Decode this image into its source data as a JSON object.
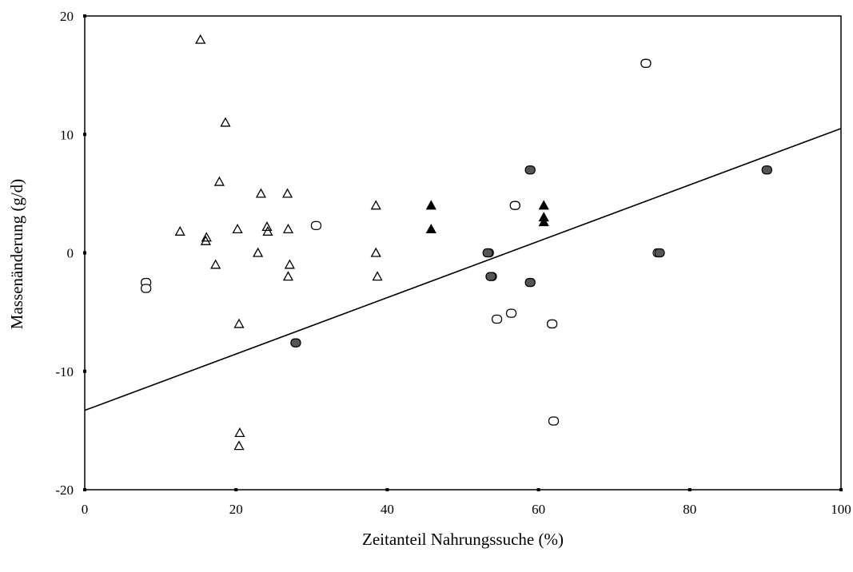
{
  "chart_data": {
    "type": "scatter",
    "title": "",
    "xlabel": "Zeitanteil Nahrungssuche (%)",
    "ylabel": "Massenänderung (g/d)",
    "xlim": [
      0,
      100
    ],
    "ylim": [
      -20,
      20
    ],
    "x_ticks": [
      "0",
      "20",
      "40",
      "60",
      "80",
      "100"
    ],
    "y_ticks": [
      "-20",
      "-10",
      "0",
      "10",
      "20"
    ],
    "grid": false,
    "legend": "none",
    "series": [
      {
        "marker": "open-triangle",
        "points": [
          [
            15.3,
            18
          ],
          [
            18.6,
            11
          ],
          [
            17.8,
            6
          ],
          [
            23.3,
            5
          ],
          [
            26.8,
            5
          ],
          [
            38.5,
            4
          ],
          [
            12.6,
            1.8
          ],
          [
            16.1,
            1.3
          ],
          [
            16.0,
            1.0
          ],
          [
            20.2,
            2.0
          ],
          [
            24.1,
            2.2
          ],
          [
            24.2,
            1.8
          ],
          [
            26.9,
            2.0
          ],
          [
            22.9,
            0
          ],
          [
            38.5,
            0
          ],
          [
            17.3,
            -1
          ],
          [
            27.1,
            -1
          ],
          [
            26.9,
            -2
          ],
          [
            38.7,
            -2
          ],
          [
            20.4,
            -6
          ],
          [
            20.5,
            -15.2
          ],
          [
            20.4,
            -16.3
          ]
        ]
      },
      {
        "marker": "filled-triangle",
        "points": [
          [
            45.8,
            4
          ],
          [
            45.8,
            2
          ],
          [
            60.7,
            4
          ],
          [
            60.7,
            3
          ],
          [
            60.7,
            2.6
          ]
        ]
      },
      {
        "marker": "open-circle",
        "points": [
          [
            8.1,
            -2.5
          ],
          [
            8.1,
            -3.0
          ],
          [
            30.6,
            2.3
          ],
          [
            53.4,
            0
          ],
          [
            53.8,
            -2.0
          ],
          [
            54.5,
            -5.6
          ],
          [
            56.4,
            -5.1
          ],
          [
            56.9,
            4
          ],
          [
            61.8,
            -6
          ],
          [
            62.0,
            -14.2
          ],
          [
            74.2,
            16
          ],
          [
            75.8,
            0
          ]
        ]
      },
      {
        "marker": "filled-circle",
        "points": [
          [
            27.9,
            -7.6
          ],
          [
            58.9,
            7
          ],
          [
            58.9,
            -2.5
          ],
          [
            90.2,
            7
          ],
          [
            53.3,
            0
          ],
          [
            53.7,
            -2.0
          ],
          [
            76.0,
            0
          ]
        ]
      }
    ],
    "fit_line": {
      "x": [
        0,
        100
      ],
      "y": [
        -13.3,
        10.5
      ]
    }
  }
}
